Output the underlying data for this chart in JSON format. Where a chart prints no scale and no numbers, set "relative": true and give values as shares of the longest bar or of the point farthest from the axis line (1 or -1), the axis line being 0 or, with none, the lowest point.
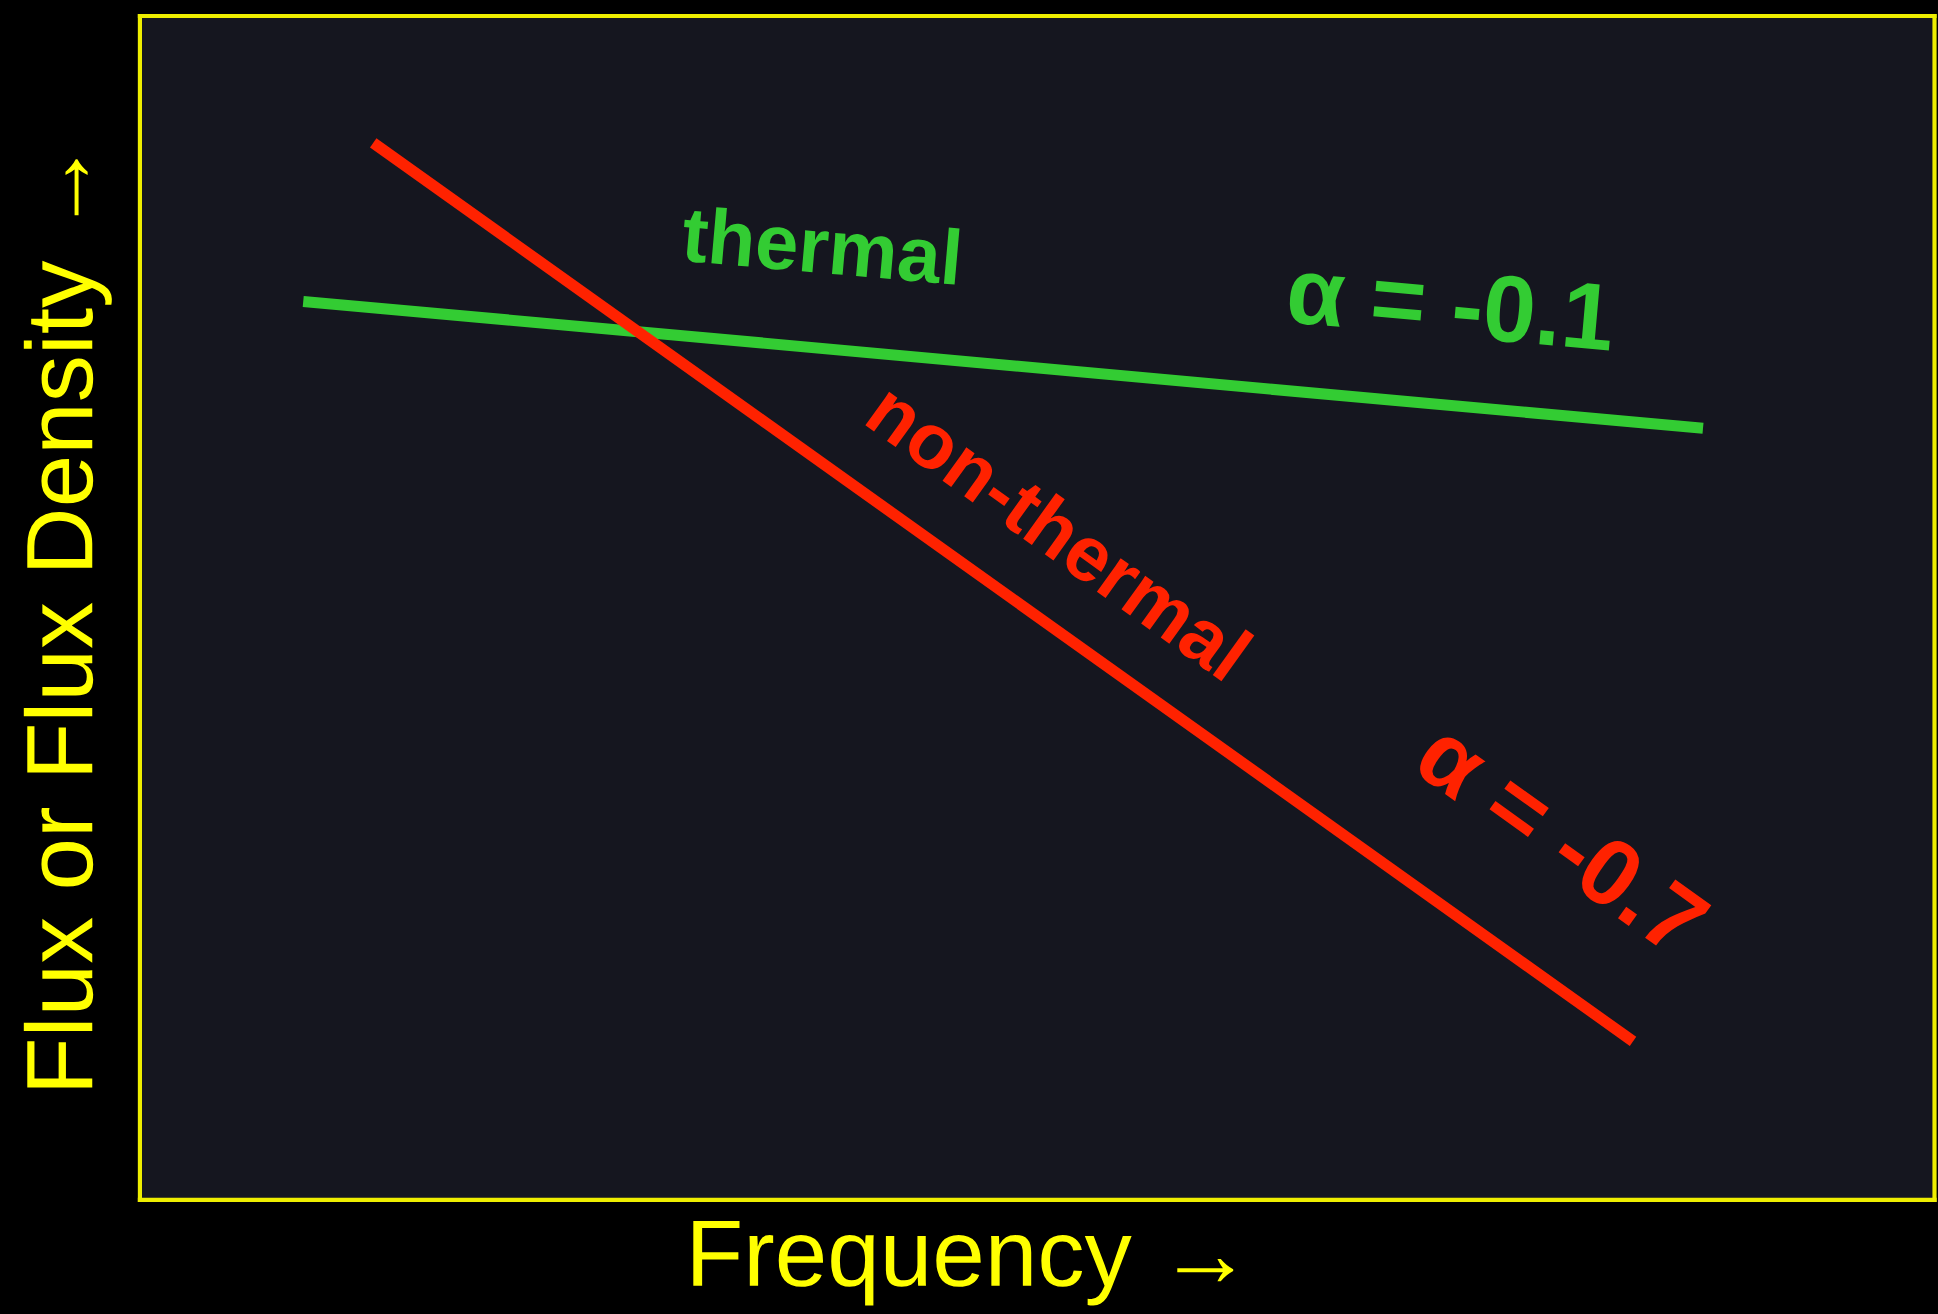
{
  "chart_data": {
    "type": "line",
    "relative": true,
    "xlabel": "Frequency →",
    "ylabel": "Flux or Flux Density →",
    "categories": [
      null,
      null,
      null,
      null,
      null,
      null,
      null,
      null,
      null,
      null,
      null,
      null,
      null,
      null,
      null,
      null,
      null,
      null,
      null,
      null,
      null
    ],
    "marker": "none",
    "line_style": "solid",
    "series": [
      {
        "name": "thermal",
        "color": "#33cc33",
        "values": [
          0.85,
          null,
          null,
          null,
          null,
          null,
          null,
          null,
          null,
          null,
          null,
          null,
          null,
          null,
          null,
          null,
          null,
          null,
          null,
          null,
          0.73
        ]
      },
      {
        "name": "non-thermal",
        "color": "#ff2200",
        "values": [
          null,
          1,
          null,
          null,
          null,
          null,
          null,
          null,
          null,
          null,
          null,
          null,
          null,
          null,
          null,
          null,
          null,
          null,
          null,
          0.15,
          null
        ]
      }
    ],
    "annotations": [
      "α = -0.1",
      "α = -0.7"
    ]
  }
}
